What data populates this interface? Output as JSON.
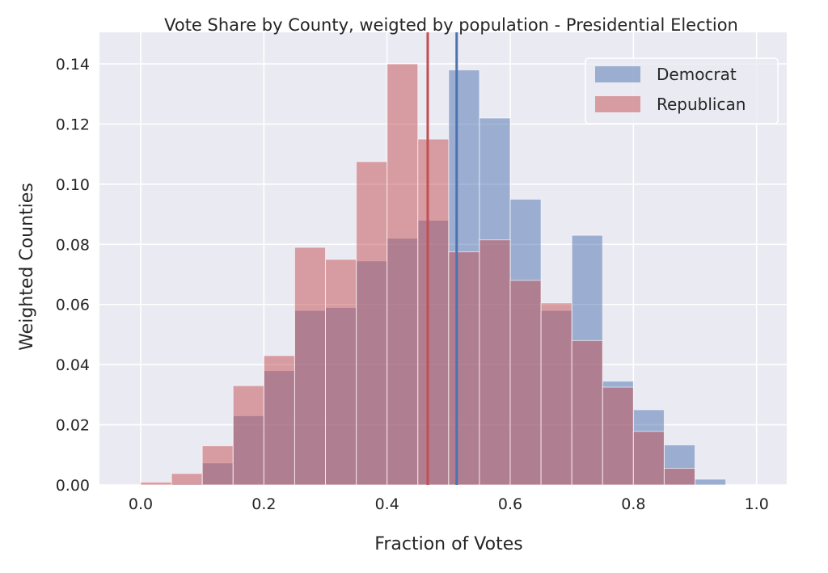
{
  "chart_data": {
    "type": "bar",
    "subtype": "overlaid-histogram",
    "title": "Vote Share by County, weigted by population - Presidential Election",
    "xlabel": "Fraction of Votes",
    "ylabel": "Weighted Counties",
    "xlim": [
      -0.067,
      1.049
    ],
    "ylim": [
      0,
      0.1505
    ],
    "xticks": [
      "0.0",
      "0.2",
      "0.4",
      "0.6",
      "0.8",
      "1.0"
    ],
    "xtick_values": [
      0,
      0.2,
      0.4,
      0.6,
      0.8,
      1.0
    ],
    "yticks": [
      "0.00",
      "0.02",
      "0.04",
      "0.06",
      "0.08",
      "0.10",
      "0.12",
      "0.14"
    ],
    "ytick_values": [
      0,
      0.02,
      0.04,
      0.06,
      0.08,
      0.1,
      0.12,
      0.14
    ],
    "grid": true,
    "legend_position": "top-right",
    "bin_edges": [
      0,
      0.05,
      0.1,
      0.15,
      0.2,
      0.25,
      0.3,
      0.35,
      0.4,
      0.45,
      0.5,
      0.55,
      0.6,
      0.65,
      0.7,
      0.75,
      0.8,
      0.85,
      0.9,
      0.95,
      1.0
    ],
    "series": [
      {
        "name": "Democrat",
        "color": "#4c72b0",
        "values": [
          0,
          0.0004,
          0.0073,
          0.023,
          0.038,
          0.058,
          0.059,
          0.0745,
          0.082,
          0.088,
          0.138,
          0.122,
          0.095,
          0.058,
          0.083,
          0.0345,
          0.025,
          0.0133,
          0.0019,
          0
        ],
        "mean_line": 0.513
      },
      {
        "name": "Republican",
        "color": "#c44e52",
        "values": [
          0.0009,
          0.0038,
          0.013,
          0.033,
          0.043,
          0.079,
          0.075,
          0.1075,
          0.14,
          0.115,
          0.0775,
          0.0815,
          0.068,
          0.0605,
          0.048,
          0.0325,
          0.0178,
          0.0055,
          0,
          0
        ],
        "mean_line": 0.466
      }
    ]
  }
}
